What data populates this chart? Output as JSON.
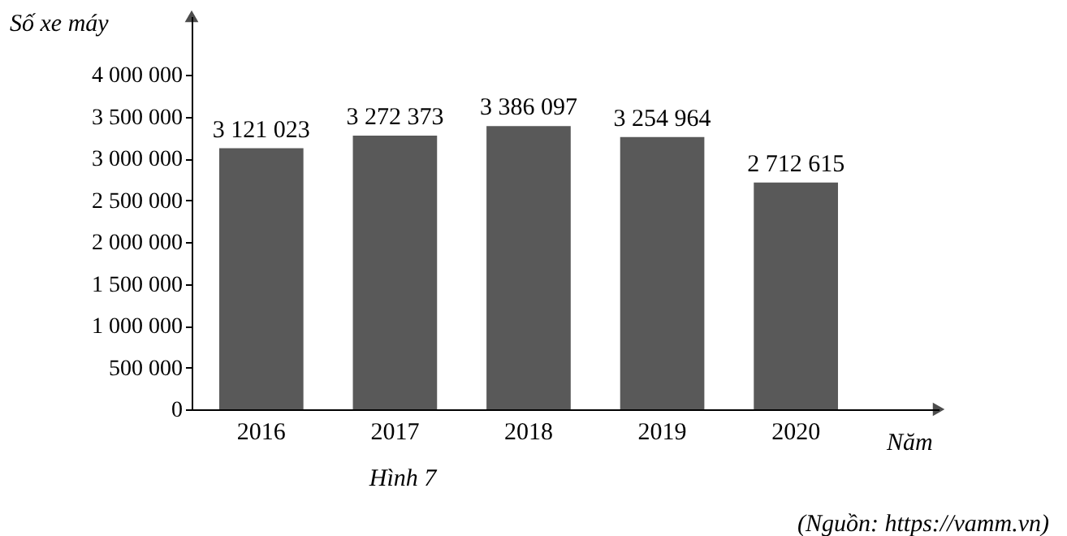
{
  "chart_data": {
    "type": "bar",
    "categories": [
      "2016",
      "2017",
      "2018",
      "2019",
      "2020"
    ],
    "values": [
      3121023,
      3272373,
      3386097,
      3254964,
      2712615
    ],
    "value_labels": [
      "3 121 023",
      "3 272 373",
      "3 386 097",
      "3 254 964",
      "2 712 615"
    ],
    "color": "#595959",
    "ylim": [
      0,
      4700000
    ],
    "yticks": [
      {
        "value": 0,
        "label": "0"
      },
      {
        "value": 500000,
        "label": "500 000"
      },
      {
        "value": 1000000,
        "label": "1 000 000"
      },
      {
        "value": 1500000,
        "label": "1 500 000"
      },
      {
        "value": 2000000,
        "label": "2 000 000"
      },
      {
        "value": 2500000,
        "label": "2 500 000"
      },
      {
        "value": 3000000,
        "label": "3 000 000"
      },
      {
        "value": 3500000,
        "label": "3 500 000"
      },
      {
        "value": 4000000,
        "label": "4 000 000"
      }
    ],
    "ylabel": "Số xe máy",
    "xlabel": "Năm",
    "annotations": [
      "Hình 7",
      "(Nguồn: https://vamm.vn)"
    ]
  }
}
